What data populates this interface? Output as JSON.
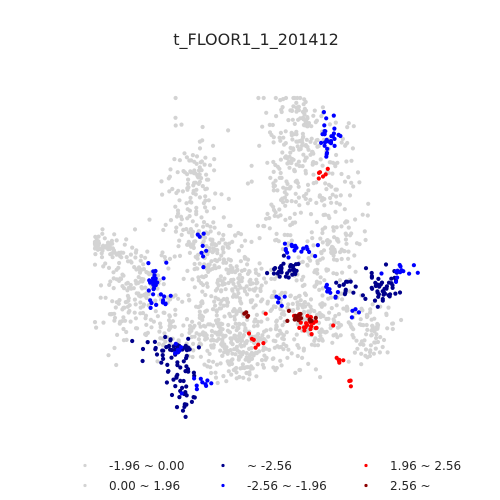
{
  "chart_data": {
    "type": "scatter",
    "title": "t_FLOOR1_1_201412",
    "xlabel": "",
    "ylabel": "",
    "axes_visible": false,
    "grid": false,
    "legend_position": "bottom",
    "legend": [
      {
        "label": "-1.96 ~ 0.00",
        "color": "#d3d3d3"
      },
      {
        "label": "~ -2.56",
        "color": "#00008b"
      },
      {
        "label": "1.96 ~ 2.56",
        "color": "#ff0000"
      },
      {
        "label": "0.00 ~ 1.96",
        "color": "#d3d3d3"
      },
      {
        "label": "-2.56 ~ -1.96",
        "color": "#0000ff"
      },
      {
        "label": "2.56 ~",
        "color": "#8b0000"
      }
    ],
    "series": [
      {
        "label": "-1.96 ~ 0.00",
        "color": "#d3d3d3",
        "clusters": [
          [
            105,
            245,
            8,
            6,
            40
          ],
          [
            125,
            290,
            14,
            30,
            120
          ],
          [
            190,
            210,
            14,
            40,
            120
          ],
          [
            230,
            270,
            16,
            20,
            90
          ],
          [
            220,
            320,
            20,
            25,
            120
          ],
          [
            285,
            180,
            16,
            40,
            130
          ],
          [
            300,
            140,
            14,
            25,
            80
          ],
          [
            330,
            200,
            16,
            40,
            110
          ],
          [
            330,
            255,
            14,
            18,
            60
          ],
          [
            270,
            340,
            30,
            18,
            140
          ],
          [
            240,
            365,
            14,
            8,
            40
          ],
          [
            375,
            335,
            10,
            14,
            50
          ],
          [
            310,
            300,
            16,
            12,
            60
          ],
          [
            175,
            330,
            16,
            14,
            60
          ],
          [
            200,
            175,
            6,
            14,
            30
          ]
        ]
      },
      {
        "label": "0.00 ~ 1.96",
        "color": "#d3d3d3",
        "clusters": [
          [
            150,
            280,
            12,
            20,
            60
          ],
          [
            210,
            250,
            14,
            20,
            70
          ],
          [
            260,
            300,
            20,
            14,
            70
          ],
          [
            320,
            330,
            14,
            10,
            40
          ],
          [
            300,
            110,
            8,
            10,
            25
          ],
          [
            355,
            320,
            12,
            12,
            40
          ],
          [
            230,
            340,
            16,
            10,
            50
          ]
        ]
      },
      {
        "label": "~ -2.56",
        "color": "#00008b",
        "clusters": [
          [
            172,
            350,
            12,
            6,
            40
          ],
          [
            180,
            375,
            8,
            10,
            25
          ],
          [
            183,
            400,
            6,
            8,
            15
          ],
          [
            288,
            270,
            8,
            6,
            30
          ],
          [
            383,
            290,
            10,
            10,
            45
          ],
          [
            347,
            285,
            6,
            6,
            14
          ]
        ]
      },
      {
        "label": "-2.56 ~ -1.96",
        "color": "#0000ff",
        "clusters": [
          [
            155,
            280,
            4,
            8,
            18
          ],
          [
            160,
            300,
            6,
            6,
            12
          ],
          [
            202,
            385,
            6,
            4,
            10
          ],
          [
            203,
            250,
            3,
            10,
            8
          ],
          [
            330,
            138,
            6,
            12,
            30
          ],
          [
            296,
            250,
            8,
            6,
            18
          ],
          [
            400,
            272,
            8,
            4,
            14
          ],
          [
            330,
            293,
            5,
            3,
            8
          ],
          [
            355,
            310,
            3,
            4,
            4
          ],
          [
            280,
            300,
            3,
            4,
            5
          ],
          [
            175,
            350,
            5,
            4,
            6
          ]
        ]
      },
      {
        "label": "1.96 ~ 2.56",
        "color": "#ff0000",
        "clusters": [
          [
            323,
            172,
            3,
            3,
            6
          ],
          [
            308,
            325,
            6,
            6,
            20
          ],
          [
            340,
            360,
            4,
            2,
            6
          ],
          [
            350,
            387,
            2,
            4,
            3
          ],
          [
            255,
            343,
            4,
            4,
            6
          ],
          [
            332,
            325,
            1,
            1,
            1
          ],
          [
            297,
            318,
            3,
            3,
            4
          ],
          [
            265,
            315,
            1,
            1,
            1
          ]
        ]
      },
      {
        "label": "2.56 ~",
        "color": "#8b0000",
        "clusters": [
          [
            300,
            318,
            6,
            4,
            14
          ],
          [
            245,
            315,
            3,
            2,
            4
          ]
        ]
      }
    ]
  }
}
